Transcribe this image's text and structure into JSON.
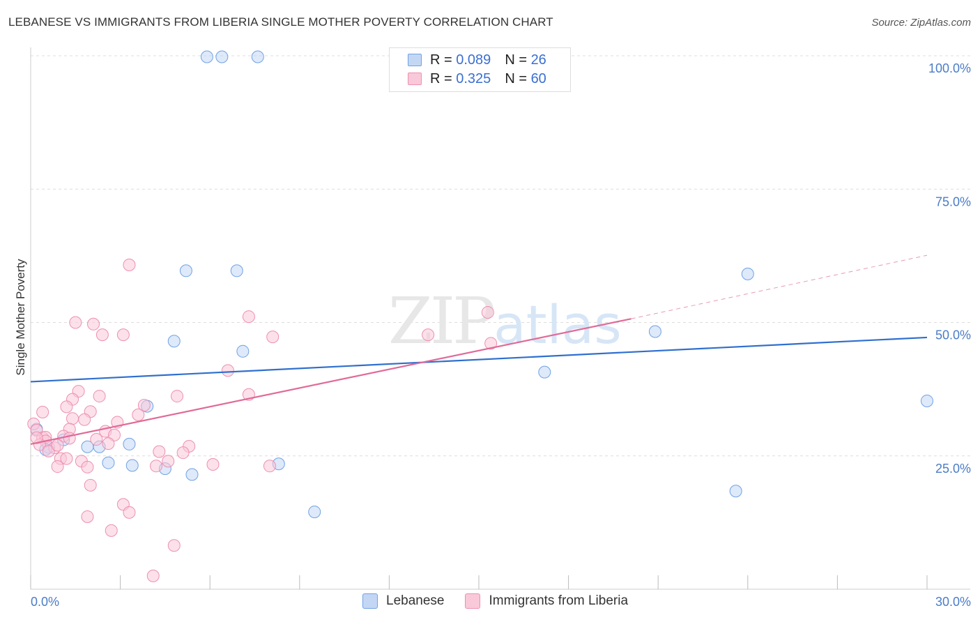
{
  "title": "LEBANESE VS IMMIGRANTS FROM LIBERIA SINGLE MOTHER POVERTY CORRELATION CHART",
  "source": "Source: ZipAtlas.com",
  "watermark": {
    "zip": "ZIP",
    "atlas": "atlas"
  },
  "legend": {
    "rows": [
      {
        "r_label": "R = ",
        "r_value": "0.089",
        "n_label": "N = ",
        "n_value": "26",
        "color": "#6fa1e6",
        "fill": "#c3d7f5"
      },
      {
        "r_label": "R = ",
        "r_value": "0.325",
        "n_label": "N = ",
        "n_value": "60",
        "color": "#ee8fb0",
        "fill": "#f9c9d9"
      }
    ],
    "bottom": [
      "Lebanese",
      "Immigrants from Liberia"
    ]
  },
  "chart_data": {
    "type": "scatter",
    "title": "LEBANESE VS IMMIGRANTS FROM LIBERIA SINGLE MOTHER POVERTY CORRELATION CHART",
    "xlabel": "",
    "ylabel": "Single Mother Poverty",
    "xlim": [
      0,
      30
    ],
    "ylim": [
      0,
      100
    ],
    "x_tick_labels": [
      "0.0%",
      "30.0%"
    ],
    "y_ticks": [
      25,
      50,
      75,
      100
    ],
    "y_tick_labels": [
      "25.0%",
      "50.0%",
      "75.0%",
      "100.0%"
    ],
    "series": [
      {
        "name": "Lebanese",
        "color": "#6fa1e6",
        "fill": "#c3d7f5",
        "points": [
          [
            5.9,
            99.8
          ],
          [
            6.4,
            99.8
          ],
          [
            7.6,
            99.8
          ],
          [
            5.2,
            59.7
          ],
          [
            6.9,
            59.7
          ],
          [
            24.0,
            59.1
          ],
          [
            4.8,
            46.5
          ],
          [
            7.1,
            44.6
          ],
          [
            20.9,
            48.3
          ],
          [
            17.2,
            40.7
          ],
          [
            30.0,
            35.3
          ],
          [
            3.9,
            34.3
          ],
          [
            0.2,
            30.0
          ],
          [
            0.6,
            26.6
          ],
          [
            1.1,
            28.0
          ],
          [
            1.9,
            26.7
          ],
          [
            2.3,
            26.7
          ],
          [
            3.3,
            27.2
          ],
          [
            2.6,
            23.7
          ],
          [
            3.4,
            23.2
          ],
          [
            4.5,
            22.6
          ],
          [
            5.4,
            21.5
          ],
          [
            8.3,
            23.5
          ],
          [
            9.5,
            14.5
          ],
          [
            23.6,
            18.4
          ],
          [
            0.5,
            26.2
          ]
        ],
        "trend": {
          "x": [
            0,
            30
          ],
          "y": [
            38.9,
            47.2
          ]
        }
      },
      {
        "name": "Immigrants from Liberia",
        "color": "#ee8fb0",
        "fill": "#f9c9d9",
        "points": [
          [
            3.3,
            60.8
          ],
          [
            15.3,
            51.9
          ],
          [
            7.3,
            51.1
          ],
          [
            1.5,
            50.0
          ],
          [
            2.1,
            49.7
          ],
          [
            2.4,
            47.7
          ],
          [
            3.1,
            47.7
          ],
          [
            8.1,
            47.3
          ],
          [
            13.3,
            47.7
          ],
          [
            15.4,
            46.1
          ],
          [
            6.6,
            41.0
          ],
          [
            1.6,
            37.1
          ],
          [
            2.3,
            36.2
          ],
          [
            7.3,
            36.5
          ],
          [
            4.9,
            36.2
          ],
          [
            1.4,
            35.6
          ],
          [
            1.2,
            34.2
          ],
          [
            3.8,
            34.5
          ],
          [
            0.4,
            33.2
          ],
          [
            2.0,
            33.3
          ],
          [
            3.6,
            32.7
          ],
          [
            1.4,
            32.0
          ],
          [
            1.8,
            31.8
          ],
          [
            2.9,
            31.3
          ],
          [
            0.1,
            31.0
          ],
          [
            1.3,
            30.0
          ],
          [
            2.5,
            29.6
          ],
          [
            0.2,
            29.8
          ],
          [
            0.4,
            28.4
          ],
          [
            1.1,
            28.7
          ],
          [
            0.5,
            28.5
          ],
          [
            2.8,
            28.9
          ],
          [
            2.2,
            28.1
          ],
          [
            0.5,
            27.8
          ],
          [
            1.3,
            28.3
          ],
          [
            2.6,
            27.3
          ],
          [
            0.3,
            27.1
          ],
          [
            0.8,
            26.5
          ],
          [
            5.3,
            26.8
          ],
          [
            0.6,
            25.9
          ],
          [
            4.3,
            25.8
          ],
          [
            5.1,
            25.6
          ],
          [
            1.0,
            24.5
          ],
          [
            1.2,
            24.5
          ],
          [
            1.7,
            24.0
          ],
          [
            4.6,
            24.0
          ],
          [
            0.9,
            23.0
          ],
          [
            4.2,
            23.1
          ],
          [
            6.1,
            23.4
          ],
          [
            8.0,
            23.1
          ],
          [
            1.9,
            22.9
          ],
          [
            2.0,
            19.5
          ],
          [
            3.1,
            15.9
          ],
          [
            3.3,
            14.4
          ],
          [
            1.9,
            13.6
          ],
          [
            2.7,
            11.0
          ],
          [
            4.8,
            8.2
          ],
          [
            4.1,
            2.5
          ],
          [
            0.2,
            28.4
          ],
          [
            0.9,
            27.0
          ]
        ],
        "trend": {
          "x": [
            0,
            20.1
          ],
          "y": [
            27.2,
            50.7
          ]
        },
        "trend_ext": {
          "x": [
            20.1,
            30
          ],
          "y": [
            50.7,
            62.6
          ]
        }
      }
    ]
  }
}
